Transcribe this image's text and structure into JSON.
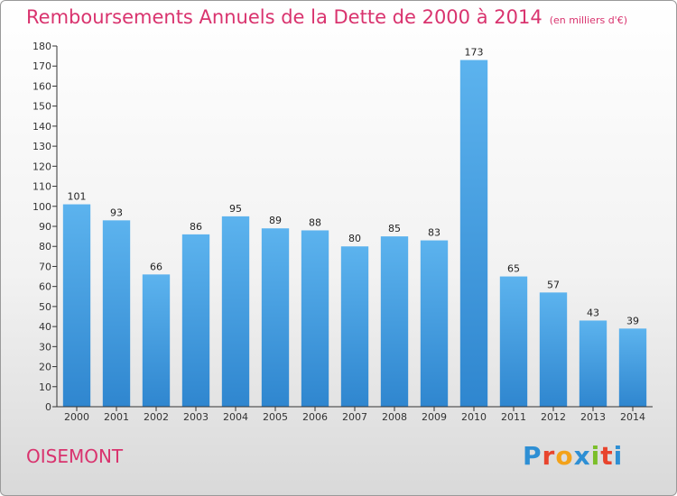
{
  "header": {
    "title": "Remboursements Annuels de la Dette de 2000 à 2014",
    "unit": "(en milliers d'€)"
  },
  "footer": {
    "commune": "OISEMONT",
    "logo_letters": [
      "P",
      "r",
      "o",
      "x",
      "i",
      "t",
      "i"
    ],
    "logo_colors": [
      "#2e8fd4",
      "#e8442d",
      "#f3a21a",
      "#2e8fd4",
      "#7bbf2a",
      "#e8442d",
      "#2e8fd4"
    ]
  },
  "colors": {
    "title": "#d9336e",
    "bar": "#4aa3e4",
    "axis": "#333333",
    "grid": "#cccccc"
  },
  "chart_data": {
    "type": "bar",
    "title": "Remboursements Annuels de la Dette de 2000 à 2014",
    "categories": [
      "2000",
      "2001",
      "2002",
      "2003",
      "2004",
      "2005",
      "2006",
      "2007",
      "2008",
      "2009",
      "2010",
      "2011",
      "2012",
      "2013",
      "2014"
    ],
    "values": [
      101,
      93,
      66,
      86,
      95,
      89,
      88,
      80,
      85,
      83,
      173,
      65,
      57,
      43,
      39
    ],
    "xlabel": "",
    "ylabel": "",
    "ylim": [
      0,
      180
    ],
    "ytick_step": 10,
    "grid": false
  }
}
